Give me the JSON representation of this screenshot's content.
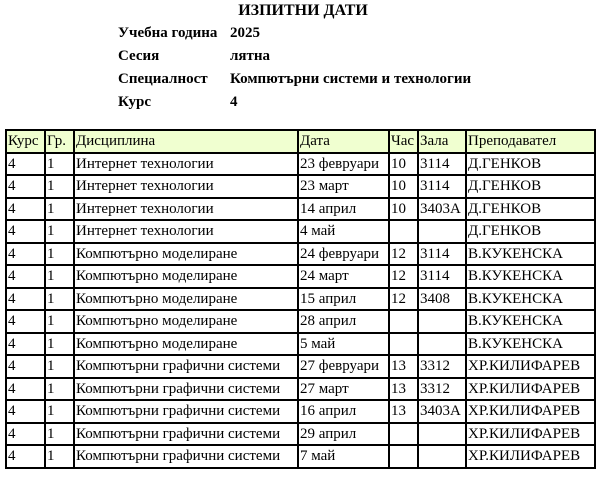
{
  "title": "ИЗПИТНИ ДАТИ",
  "info": [
    {
      "label": "Учебна година",
      "value": "2025"
    },
    {
      "label": "Сесия",
      "value": "лятна"
    },
    {
      "label": "Специалност",
      "value": "Компютърни системи и технологии"
    },
    {
      "label": "Курс",
      "value": "4"
    }
  ],
  "table": {
    "header_bg": "#f0ffd0",
    "columns": [
      "Курс",
      "Гр.",
      "Дисциплина",
      "Дата",
      "Час",
      "Зала",
      "Преподавател"
    ],
    "rows": [
      [
        "4",
        "1",
        "Интернет технологии",
        "23 февруари",
        "10",
        "3114",
        "Д.ГЕНКОВ"
      ],
      [
        "4",
        "1",
        "Интернет технологии",
        "23 март",
        "10",
        "3114",
        "Д.ГЕНКОВ"
      ],
      [
        "4",
        "1",
        "Интернет технологии",
        "14 април",
        "10",
        "3403А",
        "Д.ГЕНКОВ"
      ],
      [
        "4",
        "1",
        "Интернет технологии",
        "4 май",
        "",
        "",
        "Д.ГЕНКОВ"
      ],
      [
        "4",
        "1",
        "Компютърно моделиране",
        "24 февруари",
        "12",
        "3114",
        "В.КУКЕНСКА"
      ],
      [
        "4",
        "1",
        "Компютърно моделиране",
        "24 март",
        "12",
        "3114",
        "В.КУКЕНСКА"
      ],
      [
        "4",
        "1",
        "Компютърно моделиране",
        "15 април",
        "12",
        "3408",
        "В.КУКЕНСКА"
      ],
      [
        "4",
        "1",
        "Компютърно моделиране",
        "28 април",
        "",
        "",
        "В.КУКЕНСКА"
      ],
      [
        "4",
        "1",
        "Компютърно моделиране",
        "5 май",
        "",
        "",
        "В.КУКЕНСКА"
      ],
      [
        "4",
        "1",
        "Компютърни графични системи",
        "27 февруари",
        "13",
        "3312",
        "ХР.КИЛИФАРЕВ"
      ],
      [
        "4",
        "1",
        "Компютърни графични системи",
        "27 март",
        "13",
        "3312",
        "ХР.КИЛИФАРЕВ"
      ],
      [
        "4",
        "1",
        "Компютърни графични системи",
        "16 април",
        "13",
        "3403А",
        "ХР.КИЛИФАРЕВ"
      ],
      [
        "4",
        "1",
        "Компютърни графични системи",
        "29 април",
        "",
        "",
        "ХР.КИЛИФАРЕВ"
      ],
      [
        "4",
        "1",
        "Компютърни графични системи",
        "7 май",
        "",
        "",
        "ХР.КИЛИФАРЕВ"
      ]
    ]
  }
}
